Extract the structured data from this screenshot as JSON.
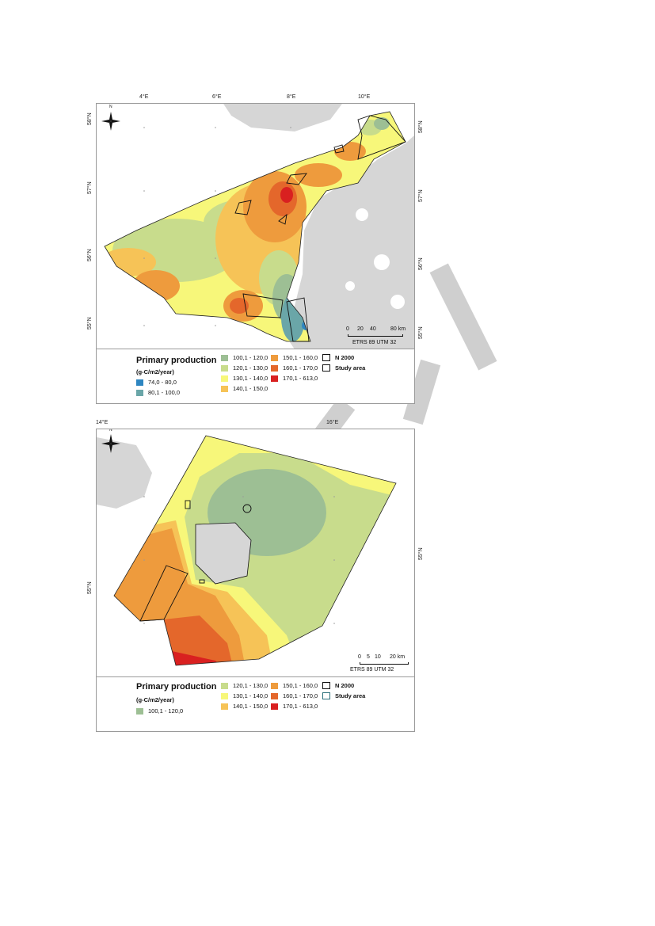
{
  "map1": {
    "top_ticks": [
      "4°E",
      "6°E",
      "8°E",
      "10°E"
    ],
    "left_ticks": [
      "58°N",
      "57°N",
      "56°N",
      "55°N"
    ],
    "right_ticks": [
      "58°N",
      "57°N",
      "56°N",
      "55°N"
    ],
    "scale_labels": [
      "0",
      "20",
      "40",
      "80 km"
    ],
    "projection": "ETRS 89 UTM 32",
    "north_label": "N",
    "legend": {
      "title": "Primary production",
      "unit": "(g-C/m2/year)",
      "classes": [
        {
          "label": "74,0 - 80,0",
          "color": "#2e86c1"
        },
        {
          "label": "80,1 - 100,0",
          "color": "#6aa6a8"
        },
        {
          "label": "100,1 - 120,0",
          "color": "#9dbf94"
        },
        {
          "label": "120,1 - 130,0",
          "color": "#c8dc8c"
        },
        {
          "label": "130,1 - 140,0",
          "color": "#f7f77a"
        },
        {
          "label": "140,1 - 150,0",
          "color": "#f6c357"
        },
        {
          "label": "150,1 - 160,0",
          "color": "#ee9b3d"
        },
        {
          "label": "160,1 - 170,0",
          "color": "#e4672b"
        },
        {
          "label": "170,1 - 613,0",
          "color": "#d92020"
        }
      ],
      "n2000": "N 2000",
      "study_area": "Study area"
    }
  },
  "map2": {
    "top_ticks": [
      "14°E",
      "16°E"
    ],
    "left_ticks": [
      "55°N"
    ],
    "right_ticks": [
      "55°N"
    ],
    "scale_labels": [
      "0",
      "5",
      "10",
      "20 km"
    ],
    "projection": "ETRS 89 UTM 32",
    "north_label": "N",
    "legend": {
      "title": "Primary production",
      "unit": "(g-C/m2/year)",
      "classes": [
        {
          "label": "100,1 - 120,0",
          "color": "#9dbf94"
        },
        {
          "label": "120,1 - 130,0",
          "color": "#c8dc8c"
        },
        {
          "label": "130,1 - 140,0",
          "color": "#f7f77a"
        },
        {
          "label": "140,1 - 150,0",
          "color": "#f6c357"
        },
        {
          "label": "150,1 - 160,0",
          "color": "#ee9b3d"
        },
        {
          "label": "160,1 - 170,0",
          "color": "#e4672b"
        },
        {
          "label": "170,1 - 613,0",
          "color": "#d92020"
        }
      ],
      "n2000": "N 2000",
      "study_area": "Study area"
    }
  },
  "colors": {
    "land": "#d6d6d6",
    "border": "#9a9a9a",
    "watermark": "#cfcfcf"
  }
}
